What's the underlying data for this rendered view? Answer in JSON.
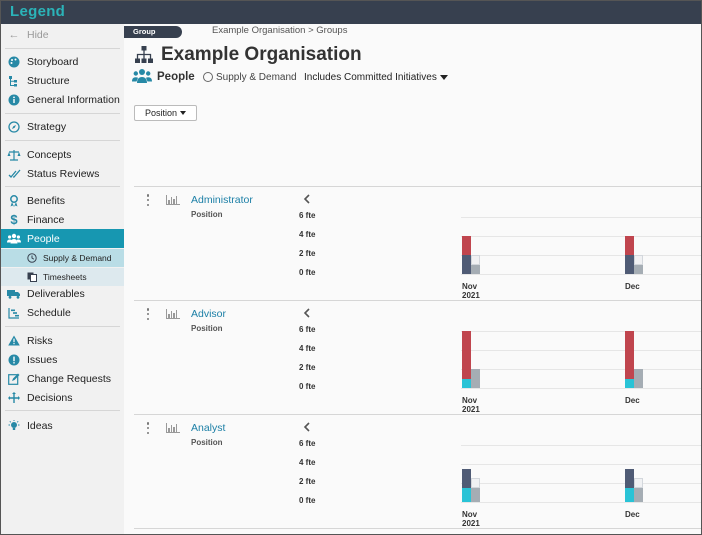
{
  "app": {
    "logo": "Legend"
  },
  "sidebar": {
    "hide_label": "Hide",
    "items": [
      {
        "label": "Storyboard",
        "icon": "palette-icon"
      },
      {
        "label": "Structure",
        "icon": "hierarchy-icon"
      },
      {
        "label": "General Information",
        "icon": "info-icon"
      },
      {
        "label": "Strategy",
        "icon": "compass-icon"
      },
      {
        "label": "Concepts",
        "icon": "scales-icon"
      },
      {
        "label": "Status Reviews",
        "icon": "check-double-icon"
      },
      {
        "label": "Benefits",
        "icon": "ribbon-icon"
      },
      {
        "label": "Finance",
        "icon": "dollar-icon"
      },
      {
        "label": "People",
        "icon": "people-icon"
      },
      {
        "label": "Deliverables",
        "icon": "truck-icon"
      },
      {
        "label": "Schedule",
        "icon": "gantt-icon"
      },
      {
        "label": "Risks",
        "icon": "warning-icon"
      },
      {
        "label": "Issues",
        "icon": "exclamation-icon"
      },
      {
        "label": "Change Requests",
        "icon": "edit-icon"
      },
      {
        "label": "Decisions",
        "icon": "decision-icon"
      },
      {
        "label": "Ideas",
        "icon": "lightbulb-icon"
      }
    ],
    "subitems": [
      {
        "label": "Supply & Demand",
        "icon": "clock-icon"
      },
      {
        "label": "Timesheets",
        "icon": "copy-icon"
      }
    ]
  },
  "header": {
    "group_tag": "Group",
    "breadcrumb": "Example Organisation > Groups",
    "title": "Example Organisation",
    "section": "People",
    "subsection": "Supply & Demand",
    "filter": "Includes Committed Initiatives"
  },
  "position_button": "Position",
  "chart_axis": {
    "ticks": [
      "6 fte",
      "4 fte",
      "2 fte",
      "0 fte"
    ],
    "months": [
      [
        "Nov",
        "2021"
      ],
      [
        "Dec",
        ""
      ]
    ]
  },
  "colors": {
    "dark": "#4f5b75",
    "red": "#c0454e",
    "cyan": "#29c3d6",
    "grey": "#a5adb4",
    "light": "#f0f1f3"
  },
  "rows": [
    {
      "name": "Administrator",
      "sub": "Position",
      "chart_data": {
        "type": "bar",
        "categories": [
          "Nov 2021",
          "Dec"
        ],
        "ylim": [
          0,
          6
        ],
        "yunit": "fte",
        "demand_stack": [
          {
            "dark": 2,
            "red": 2
          },
          {
            "dark": 2,
            "red": 2
          }
        ],
        "supply_stack": [
          {
            "grey": 1,
            "light": 1
          },
          {
            "grey": 1,
            "light": 1
          }
        ]
      }
    },
    {
      "name": "Advisor",
      "sub": "Position",
      "chart_data": {
        "type": "bar",
        "categories": [
          "Nov 2021",
          "Dec"
        ],
        "ylim": [
          0,
          6
        ],
        "yunit": "fte",
        "demand_stack": [
          {
            "cyan": 1,
            "red": 5
          },
          {
            "cyan": 1,
            "red": 5
          }
        ],
        "supply_stack": [
          {
            "grey": 2
          },
          {
            "grey": 2
          }
        ]
      }
    },
    {
      "name": "Analyst",
      "sub": "Position",
      "chart_data": {
        "type": "bar",
        "categories": [
          "Nov 2021",
          "Dec"
        ],
        "ylim": [
          0,
          6
        ],
        "yunit": "fte",
        "demand_stack": [
          {
            "cyan": 1.5,
            "dark": 2
          },
          {
            "cyan": 1.5,
            "dark": 2
          }
        ],
        "supply_stack": [
          {
            "grey": 1.5,
            "light": 1
          },
          {
            "grey": 1.5,
            "light": 1
          }
        ]
      }
    }
  ]
}
